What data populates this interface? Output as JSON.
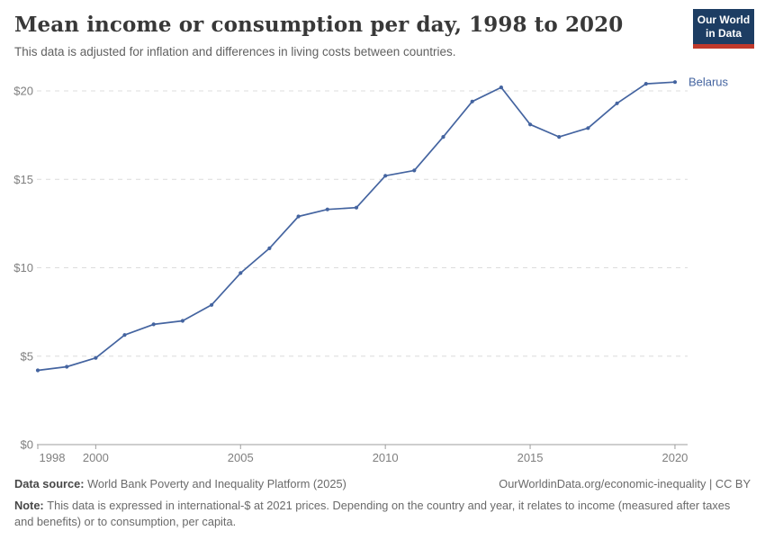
{
  "header": {
    "title": "Mean income or consumption per day, 1998 to 2020",
    "subtitle": "This data is adjusted for inflation and differences in living costs between countries."
  },
  "logo": {
    "line1": "Our World",
    "line2": "in Data",
    "bg_color": "#1d3d63",
    "bar_color": "#c0392b"
  },
  "chart_data": {
    "type": "line",
    "title": "Mean income or consumption per day, 1998 to 2020",
    "x": [
      1998,
      1999,
      2000,
      2001,
      2002,
      2003,
      2004,
      2005,
      2006,
      2007,
      2008,
      2009,
      2010,
      2011,
      2012,
      2013,
      2014,
      2015,
      2016,
      2017,
      2018,
      2019,
      2020
    ],
    "series": [
      {
        "name": "Belarus",
        "color": "#4464a0",
        "values": [
          4.2,
          4.4,
          4.9,
          6.2,
          6.8,
          7.0,
          7.9,
          9.7,
          11.1,
          12.9,
          13.3,
          13.4,
          15.2,
          15.5,
          17.4,
          19.4,
          20.2,
          18.1,
          17.4,
          17.9,
          19.3,
          20.4,
          20.5
        ]
      }
    ],
    "xlabel": "",
    "ylabel": "",
    "ylim": [
      0,
      21
    ],
    "yticks": [
      0,
      5,
      10,
      15,
      20
    ],
    "ytick_labels": [
      "$0",
      "$5",
      "$10",
      "$15",
      "$20"
    ],
    "xticks": [
      1998,
      2000,
      2005,
      2010,
      2015,
      2020
    ],
    "xtick_labels": [
      "1998",
      "2000",
      "2005",
      "2010",
      "2015",
      "2020"
    ],
    "grid": "horizontal-dashed",
    "legend_position": "end-of-line-label",
    "gridline_color": "#dcdcdc",
    "axis_color": "#9e9e9e"
  },
  "footer": {
    "datasource_label": "Data source:",
    "datasource_text": "World Bank Poverty and Inequality Platform (2025)",
    "credit": "OurWorldinData.org/economic-inequality | CC BY",
    "note_label": "Note:",
    "note_text": "This data is expressed in international-$ at 2021 prices. Depending on the country and year, it relates to income (measured after taxes and benefits) or to consumption, per capita."
  }
}
